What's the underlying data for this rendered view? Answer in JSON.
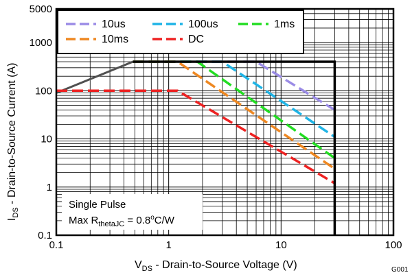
{
  "figure_tag": "G001",
  "chart_data": {
    "type": "line",
    "xscale": "log",
    "yscale": "log",
    "xlim": [
      0.1,
      100
    ],
    "ylim": [
      0.1,
      5000
    ],
    "grid": true,
    "legend_placement": "top-left",
    "x_ticks": [
      "0.1",
      "1",
      "10",
      "100"
    ],
    "y_ticks": [
      "0.1",
      "1",
      "10",
      "100",
      "1000",
      "5000"
    ],
    "xlabel": {
      "main": "V",
      "sub": "DS",
      "rest": " - Drain-to-Source Voltage (V)"
    },
    "ylabel": {
      "main": "I",
      "sub": "DS",
      "rest": " - Drain-to-Source Current (A)"
    },
    "annotation": {
      "line1": "Single Pulse",
      "line2_prefix": "Max R",
      "line2_sub": "thetaJC",
      "line2_eq": " = 0.8",
      "line2_sup": "o",
      "line2_suffix": "C/W"
    },
    "envelope": {
      "color": "#505050",
      "points": [
        [
          0.1,
          90
        ],
        [
          0.48,
          400
        ]
      ]
    },
    "boundary": {
      "color": "#000000",
      "points": [
        [
          0.48,
          400
        ],
        [
          30,
          400
        ],
        [
          30,
          0.1
        ]
      ]
    },
    "series": [
      {
        "name": "10us",
        "color": "#9b8ce6",
        "points": [
          [
            0.48,
            400
          ],
          [
            6,
            400
          ],
          [
            30,
            40
          ]
        ]
      },
      {
        "name": "100us",
        "color": "#1fb4e6",
        "points": [
          [
            0.48,
            400
          ],
          [
            3,
            400
          ],
          [
            30,
            11
          ]
        ]
      },
      {
        "name": "1ms",
        "color": "#22dd22",
        "points": [
          [
            0.48,
            400
          ],
          [
            1.8,
            400
          ],
          [
            30,
            4
          ]
        ]
      },
      {
        "name": "10ms",
        "color": "#ee8822",
        "points": [
          [
            0.48,
            400
          ],
          [
            1.2,
            400
          ],
          [
            30,
            2.4
          ]
        ]
      },
      {
        "name": "DC",
        "color": "#ee2222",
        "points": [
          [
            0.1,
            100
          ],
          [
            1.2,
            100
          ],
          [
            30,
            1.2
          ]
        ]
      }
    ]
  }
}
